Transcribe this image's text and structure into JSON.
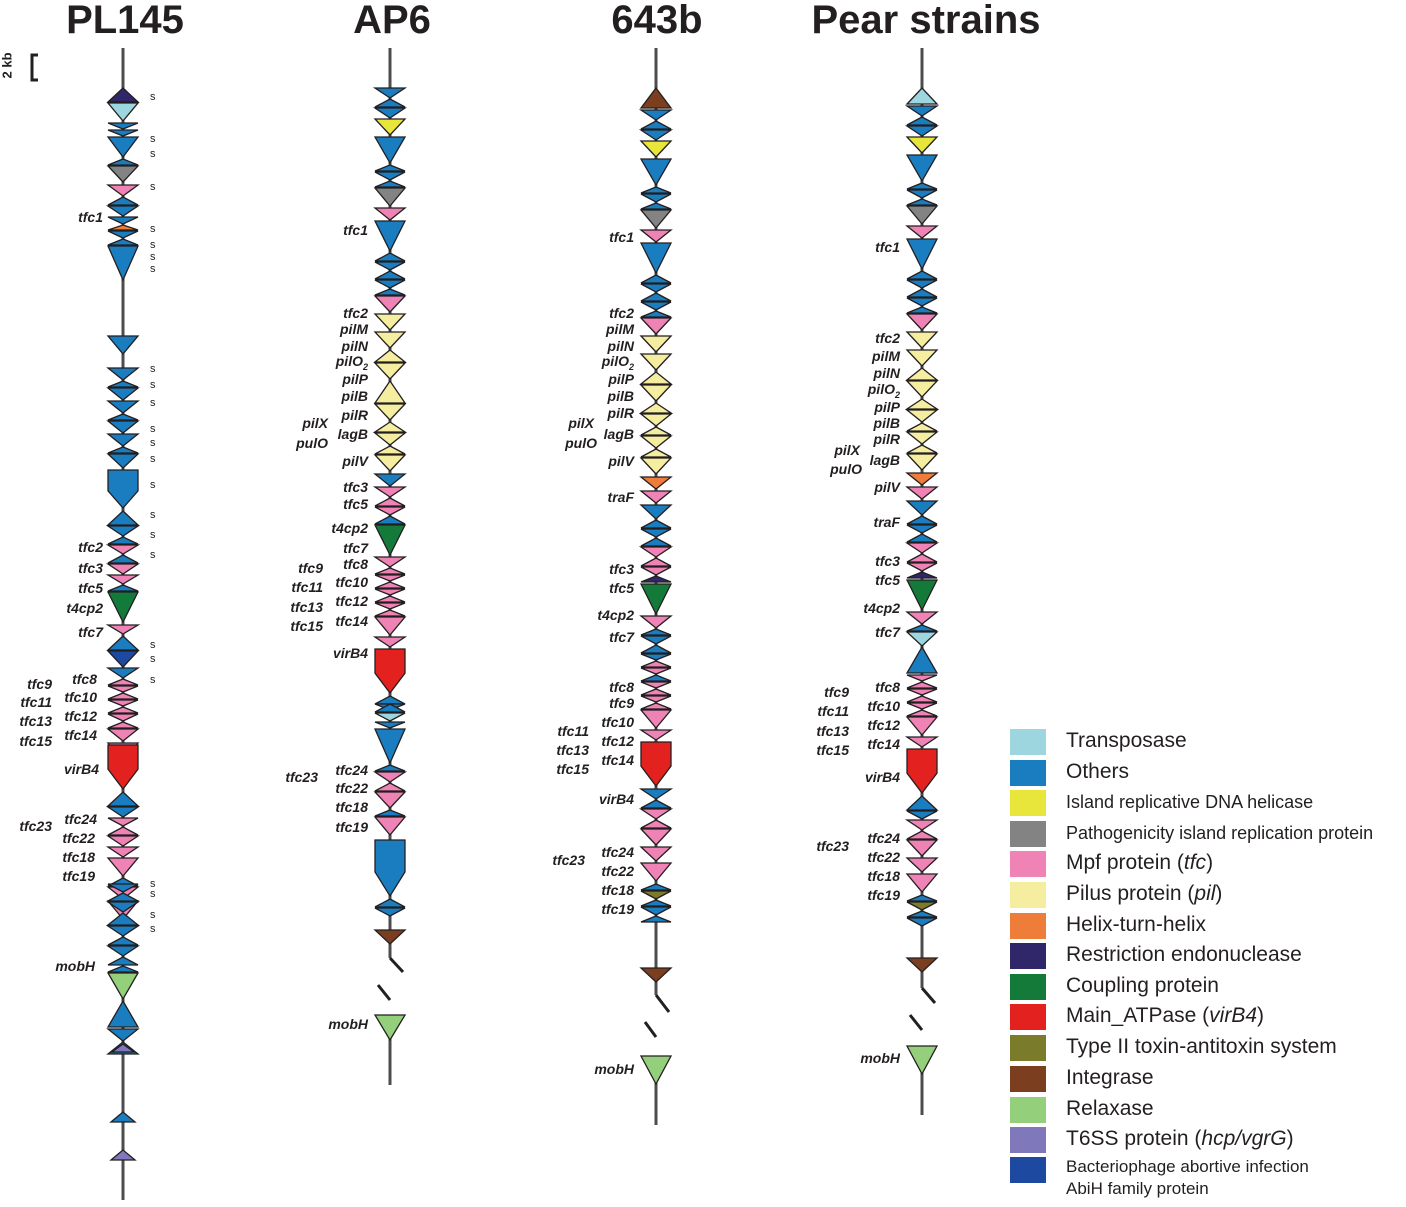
{
  "figure": {
    "scale_bar_label": "2 kb",
    "columns": [
      {
        "title": "PL145"
      },
      {
        "title": "AP6"
      },
      {
        "title": "643b"
      },
      {
        "title": "Pear strains"
      }
    ]
  },
  "genes": {
    "PL145": {
      "labels": [
        "tfc1",
        "tfc2",
        "tfc3",
        "tfc5",
        "t4cp2",
        "tfc7",
        "tfc8",
        "tfc9",
        "tfc10",
        "tfc11",
        "tfc12",
        "tfc13",
        "tfc14",
        "tfc15",
        "virB4",
        "tfc24",
        "tfc23",
        "tfc22",
        "tfc18",
        "tfc19",
        "mobH"
      ],
      "s_marks": [
        "s",
        "s",
        "s",
        "s",
        "s",
        "s",
        "s",
        "s",
        "s",
        "s",
        "s",
        "s",
        "s",
        "s",
        "s",
        "s",
        "s",
        "s",
        "s",
        "s",
        "s",
        "s",
        "s",
        "s"
      ]
    },
    "AP6": {
      "labels": [
        "tfc1",
        "tfc2",
        "pilM",
        "pilN",
        "pilO2",
        "pilP",
        "pilB",
        "pilR",
        "pilX",
        "lagB",
        "pulO",
        "pilV",
        "tfc3",
        "tfc5",
        "t4cp2",
        "tfc7",
        "tfc8",
        "tfc9",
        "tfc10",
        "tfc11",
        "tfc12",
        "tfc13",
        "tfc14",
        "tfc15",
        "virB4",
        "tfc24",
        "tfc23",
        "tfc22",
        "tfc18",
        "tfc19",
        "mobH"
      ]
    },
    "643b": {
      "labels": [
        "tfc1",
        "tfc2",
        "pilM",
        "pilN",
        "pilO2",
        "pilP",
        "pilB",
        "pilR",
        "pilX",
        "lagB",
        "pulO",
        "pilV",
        "traF",
        "tfc3",
        "tfc5",
        "t4cp2",
        "tfc7",
        "tfc8",
        "tfc9",
        "tfc10",
        "tfc11",
        "tfc12",
        "tfc13",
        "tfc14",
        "tfc15",
        "virB4",
        "tfc24",
        "tfc23",
        "tfc22",
        "tfc18",
        "tfc19",
        "mobH"
      ]
    },
    "Pear strains": {
      "labels": [
        "tfc1",
        "tfc2",
        "pilM",
        "pilN",
        "pilO2",
        "pilP",
        "pilB",
        "pilR",
        "pilX",
        "lagB",
        "pulO",
        "pilV",
        "traF",
        "tfc3",
        "tfc5",
        "t4cp2",
        "tfc7",
        "tfc8",
        "tfc9",
        "tfc10",
        "tfc11",
        "tfc12",
        "tfc13",
        "tfc14",
        "tfc15",
        "virB4",
        "tfc24",
        "tfc23",
        "tfc22",
        "tfc18",
        "tfc19",
        "mobH"
      ]
    }
  },
  "legend": [
    {
      "label": "Transposase",
      "color": "#9dd6df"
    },
    {
      "label": "Others",
      "color": "#1a7dc0"
    },
    {
      "label": "Island replicative DNA helicase",
      "color": "#e8e63a"
    },
    {
      "label": "Pathogenicity island replication protein",
      "color": "#838383"
    },
    {
      "label": "Mpf protein (tfc)",
      "color": "#ef83b5"
    },
    {
      "label": "Pilus protein (pil)",
      "color": "#f5eea0"
    },
    {
      "label": "Helix-turn-helix",
      "color": "#ee7d3a"
    },
    {
      "label": "Restriction endonuclease",
      "color": "#30266a"
    },
    {
      "label": "Coupling protein",
      "color": "#137a3a"
    },
    {
      "label": "Main_ATPase (virB4)",
      "color": "#e3211f"
    },
    {
      "label": "Type II toxin-antitoxin system",
      "color": "#7a7b2b"
    },
    {
      "label": " Integrase",
      "color": "#7b3f20"
    },
    {
      "label": " Relaxase",
      "color": "#94cf7b"
    },
    {
      "label": "T6SS  protein (hcp/vgrG)",
      "color": "#7f79bb"
    },
    {
      "label": "Bacteriophage abortive infection",
      "label2": "AbiH family protein",
      "color": "#1d4aa0"
    }
  ]
}
